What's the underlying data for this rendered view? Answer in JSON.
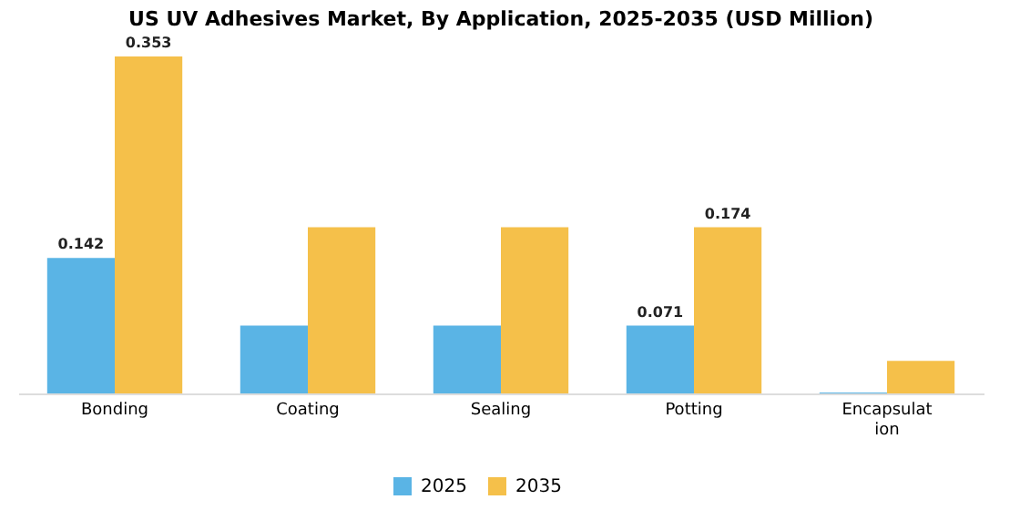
{
  "chart_data": {
    "type": "bar",
    "title": "US UV Adhesives Market, By Application, 2025-2035 (USD Million)",
    "categories": [
      "Bonding",
      "Coating",
      "Sealing",
      "Potting",
      "Encapsulation"
    ],
    "series": [
      {
        "name": "2025",
        "color": "#5ab4e5",
        "values": [
          0.142,
          0.071,
          0.071,
          0.071,
          0.001
        ],
        "value_labels": [
          "0.142",
          null,
          null,
          "0.071",
          null
        ]
      },
      {
        "name": "2035",
        "color": "#f5c04a",
        "values": [
          0.353,
          0.174,
          0.174,
          0.174,
          0.034
        ],
        "value_labels": [
          "0.353",
          null,
          null,
          "0.174",
          null
        ]
      }
    ],
    "legend": "bottom",
    "grid": false
  }
}
